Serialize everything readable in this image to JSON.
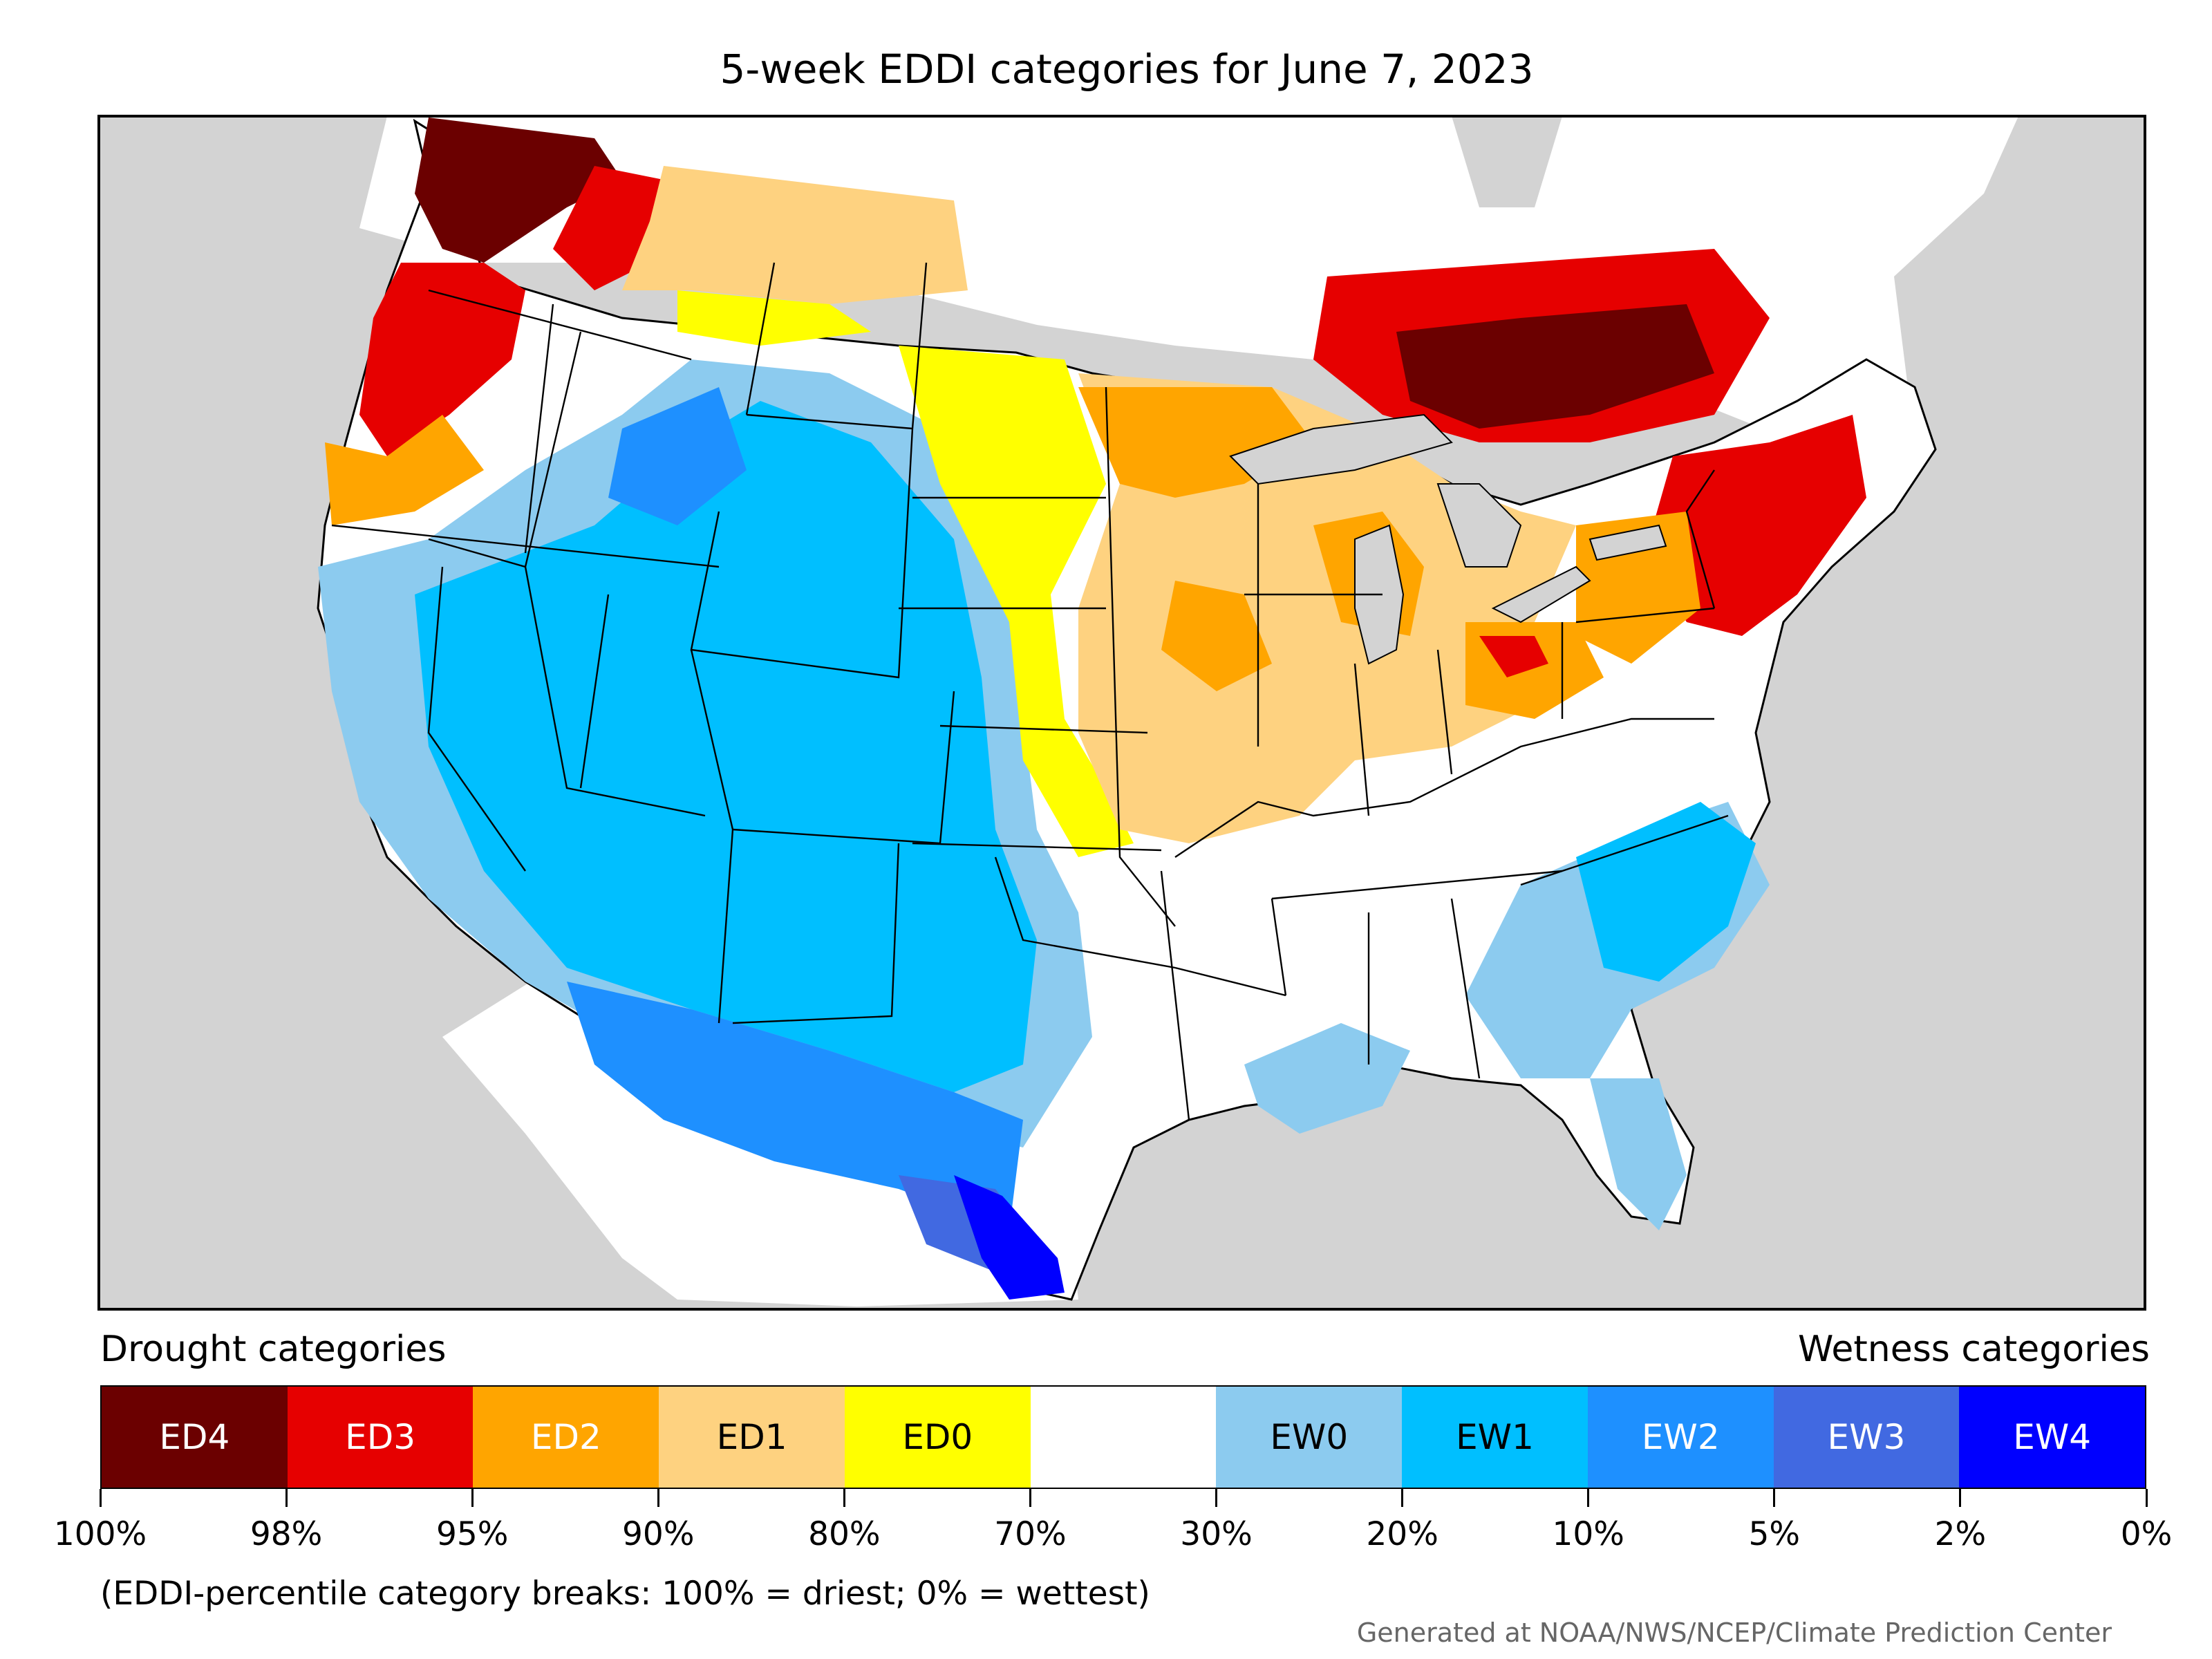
{
  "title": "5-week EDDI categories for June 7, 2023",
  "legend": {
    "left_header": "Drought categories",
    "right_header": "Wetness categories",
    "categories": [
      {
        "label": "ED4",
        "color": "#6b0000",
        "text_color": "#ffffff"
      },
      {
        "label": "ED3",
        "color": "#e60000",
        "text_color": "#ffffff"
      },
      {
        "label": "ED2",
        "color": "#ffa500",
        "text_color": "#ffffff"
      },
      {
        "label": "ED1",
        "color": "#fed280",
        "text_color": "#000000"
      },
      {
        "label": "ED0",
        "color": "#ffff00",
        "text_color": "#000000"
      },
      {
        "label": "",
        "color": "#ffffff",
        "text_color": "#000000"
      },
      {
        "label": "EW0",
        "color": "#8ccbef",
        "text_color": "#000000"
      },
      {
        "label": "EW1",
        "color": "#00bfff",
        "text_color": "#000000"
      },
      {
        "label": "EW2",
        "color": "#1e90ff",
        "text_color": "#ffffff"
      },
      {
        "label": "EW3",
        "color": "#4169e1",
        "text_color": "#ffffff"
      },
      {
        "label": "EW4",
        "color": "#0000ff",
        "text_color": "#ffffff"
      }
    ],
    "tick_labels": [
      "100%",
      "98%",
      "95%",
      "90%",
      "80%",
      "70%",
      "30%",
      "20%",
      "10%",
      "5%",
      "2%",
      "0%"
    ]
  },
  "note": "(EDDI-percentile category breaks: 100% = driest; 0% = wettest)",
  "credit": "Generated at NOAA/NWS/NCEP/Climate Prediction Center",
  "colors": {
    "ocean_land_outside": "#d3d3d3",
    "lakes": "#d3d3d3",
    "neutral": "#ffffff"
  }
}
